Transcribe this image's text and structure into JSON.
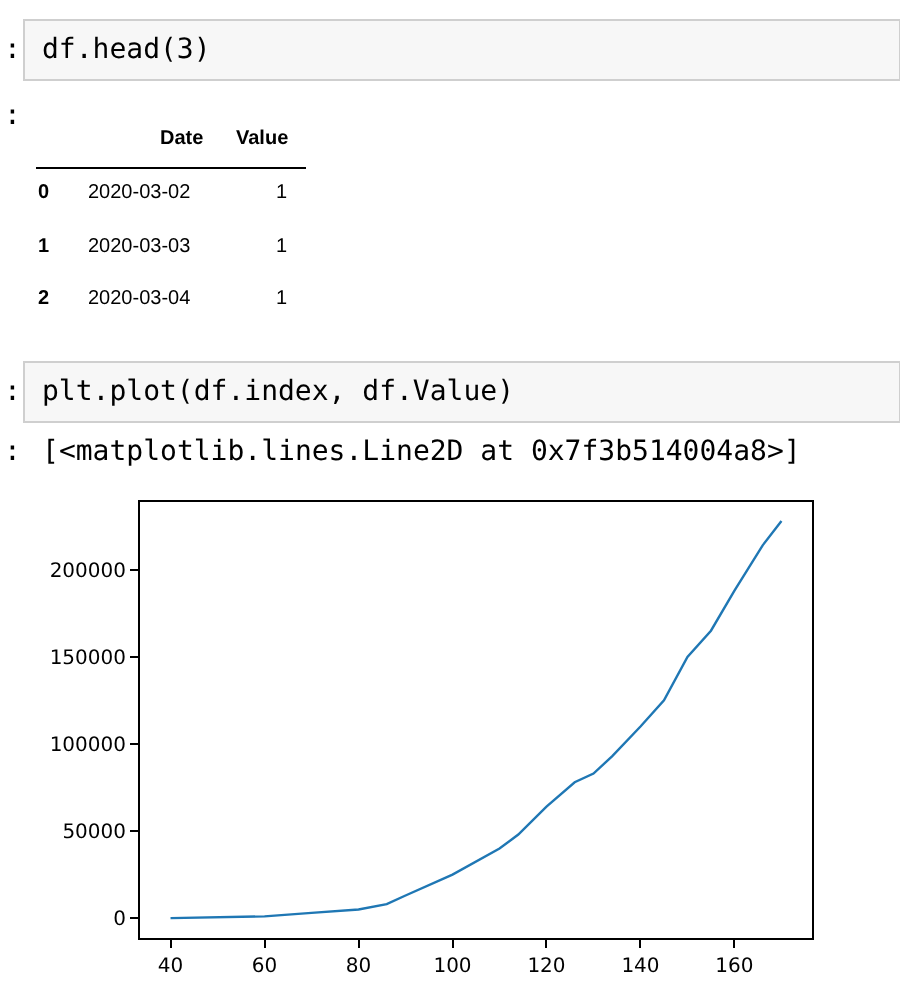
{
  "chart_data": {
    "type": "line",
    "x": [
      40,
      60,
      70,
      80,
      86,
      90,
      100,
      110,
      114,
      120,
      126,
      130,
      134,
      140,
      145,
      150,
      155,
      160,
      166,
      170
    ],
    "series": [
      {
        "color": "#1f77b4",
        "values": [
          0,
          1000,
          3000,
          5000,
          8000,
          13000,
          25000,
          40000,
          48000,
          64000,
          78000,
          83000,
          93000,
          110000,
          125000,
          150000,
          165000,
          188000,
          214000,
          228000
        ]
      }
    ],
    "xlim": [
      33.5,
      176.5
    ],
    "ylim": [
      -11400,
      238900
    ],
    "xticks": [
      40,
      60,
      80,
      100,
      120,
      140,
      160
    ],
    "yticks": [
      0,
      50000,
      100000,
      150000,
      200000
    ],
    "marker": "none",
    "line_style": "solid",
    "annotations": [
      ":",
      "df.head(3)",
      ":",
      "Date",
      "Value",
      "0",
      "2020-03-02",
      "1",
      "1",
      "2020-03-03",
      "1",
      "2",
      "2020-03-04",
      "1",
      ":",
      "plt.plot(df.index, df.Value)",
      ":",
      "[<matplotlib.lines.Line2D at 0x7f3b514004a8>]"
    ]
  }
}
